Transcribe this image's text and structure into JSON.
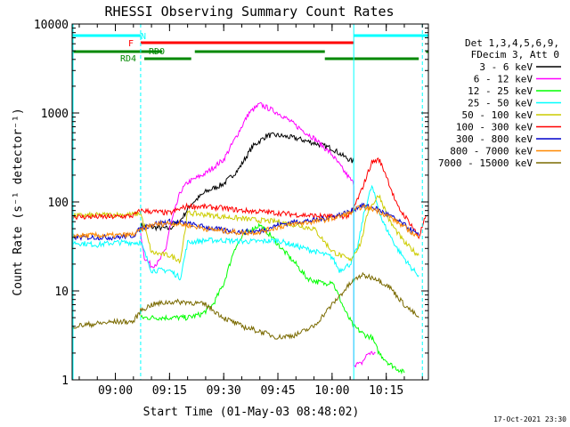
{
  "chart_data": {
    "type": "line",
    "title": "RHESSI Observing Summary Count Rates",
    "xlabel": "Start Time (01-May-03 08:48:02)",
    "ylabel": "Count Rate (s⁻¹ detector⁻¹)",
    "y_scale": "log",
    "ylim": [
      1,
      10000
    ],
    "xlim": [
      "08:48:02",
      "10:26:40"
    ],
    "x_ticks": [
      "09:00",
      "09:15",
      "09:30",
      "09:45",
      "10:00",
      "10:15"
    ],
    "y_ticks": [
      "1",
      "10",
      "100",
      "1000",
      "10000"
    ],
    "legend": {
      "header": [
        "Det 1,3,4,5,6,9,",
        "FDecim 3, Att 0"
      ],
      "placement": "right"
    },
    "series": [
      {
        "name": "3 - 6 keV",
        "color": "#000000",
        "x": [
          "09:07",
          "09:10",
          "09:15",
          "09:18",
          "09:21",
          "09:25",
          "09:30",
          "09:34",
          "09:38",
          "09:42",
          "09:45",
          "09:50",
          "09:55",
          "10:00",
          "10:03",
          "10:06"
        ],
        "y": [
          55,
          52,
          50,
          62,
          95,
          130,
          160,
          230,
          420,
          560,
          560,
          520,
          460,
          400,
          330,
          280
        ]
      },
      {
        "name": "6 - 12 keV",
        "color": "#ff00ff",
        "x": [
          "09:07",
          "09:08",
          "09:10",
          "09:12",
          "09:14",
          "09:15",
          "09:18",
          "09:20",
          "09:25",
          "09:30",
          "09:33",
          "09:37",
          "09:40",
          "09:43",
          "09:46",
          "09:50",
          "09:55",
          "10:00",
          "10:03",
          "10:06",
          "10:06",
          "10:08",
          "10:10",
          "10:12"
        ],
        "y": [
          45,
          24,
          19,
          21,
          30,
          50,
          130,
          165,
          210,
          300,
          500,
          1000,
          1250,
          1100,
          950,
          720,
          520,
          340,
          230,
          160,
          1.5,
          1.5,
          2,
          2
        ]
      },
      {
        "name": "12 - 25 keV",
        "color": "#00ff00",
        "x": [
          "09:07",
          "09:10",
          "09:15",
          "09:20",
          "09:24",
          "09:27",
          "09:30",
          "09:33",
          "09:36",
          "09:40",
          "09:43",
          "09:46",
          "09:50",
          "09:53",
          "09:55",
          "09:58",
          "10:00",
          "10:04",
          "10:06",
          "10:09",
          "10:11",
          "10:13",
          "10:16",
          "10:20"
        ],
        "y": [
          5,
          5,
          5,
          5,
          5.5,
          7,
          12,
          30,
          45,
          55,
          42,
          30,
          20,
          14,
          13,
          12,
          13,
          5.5,
          4,
          3.2,
          3,
          2,
          1.5,
          1.2
        ]
      },
      {
        "name": "25 - 50 keV",
        "color": "#00ffff",
        "x": [
          "08:48:02",
          "08:55",
          "09:00",
          "09:05",
          "09:07",
          "09:10",
          "09:15",
          "09:18",
          "09:20",
          "09:25",
          "09:30",
          "09:35",
          "09:40",
          "09:45",
          "09:50",
          "09:55",
          "10:00",
          "10:02",
          "10:05",
          "10:07",
          "10:09",
          "10:11",
          "10:14",
          "10:18",
          "10:22",
          "10:24"
        ],
        "y": [
          35,
          33,
          35,
          35,
          35,
          17,
          17,
          14,
          35,
          37,
          37,
          36,
          36,
          37,
          32,
          28,
          24,
          17,
          20,
          30,
          80,
          150,
          60,
          30,
          18,
          15
        ]
      },
      {
        "name": "50 - 100 keV",
        "color": "#cccc00",
        "x": [
          "08:48:02",
          "09:00",
          "09:05",
          "09:07",
          "09:10",
          "09:15",
          "09:18",
          "09:20",
          "09:25",
          "09:30",
          "09:35",
          "09:40",
          "09:45",
          "09:50",
          "09:55",
          "10:00",
          "10:05",
          "10:08",
          "10:10",
          "10:13",
          "10:16",
          "10:20",
          "10:24"
        ],
        "y": [
          70,
          72,
          72,
          75,
          27,
          25,
          22,
          75,
          72,
          68,
          65,
          62,
          60,
          55,
          50,
          28,
          22,
          35,
          80,
          120,
          60,
          35,
          25
        ]
      },
      {
        "name": "100 - 300 keV",
        "color": "#ff0000",
        "x": [
          "08:48:02",
          "09:00",
          "09:05",
          "09:07",
          "09:15",
          "09:20",
          "09:25",
          "09:30",
          "09:35",
          "09:40",
          "09:45",
          "09:50",
          "09:55",
          "10:00",
          "10:05",
          "10:08",
          "10:11",
          "10:13",
          "10:15",
          "10:18",
          "10:22",
          "10:24",
          "10:26"
        ],
        "y": [
          68,
          68,
          70,
          80,
          75,
          90,
          88,
          85,
          80,
          78,
          75,
          72,
          70,
          68,
          70,
          130,
          280,
          300,
          200,
          90,
          55,
          40,
          70
        ]
      },
      {
        "name": "300 - 800 keV",
        "color": "#0000cc",
        "x": [
          "08:48:02",
          "09:00",
          "09:05",
          "09:07",
          "09:10",
          "09:15",
          "09:20",
          "09:25",
          "09:30",
          "09:35",
          "09:40",
          "09:45",
          "09:50",
          "09:55",
          "10:00",
          "10:05",
          "10:08",
          "10:12",
          "10:16",
          "10:20",
          "10:24"
        ],
        "y": [
          40,
          40,
          42,
          50,
          56,
          60,
          57,
          52,
          48,
          46,
          47,
          55,
          60,
          62,
          68,
          78,
          92,
          85,
          70,
          55,
          42
        ]
      },
      {
        "name": "800 - 7000 keV",
        "color": "#ff8800",
        "x": [
          "08:48:02",
          "09:00",
          "09:05",
          "09:07",
          "09:10",
          "09:15",
          "09:20",
          "09:25",
          "09:30",
          "09:35",
          "09:40",
          "09:45",
          "09:50",
          "09:55",
          "10:00",
          "10:05",
          "10:08",
          "10:12",
          "10:16",
          "10:20",
          "10:24"
        ],
        "y": [
          42,
          42,
          43,
          48,
          55,
          58,
          55,
          50,
          47,
          45,
          46,
          52,
          57,
          60,
          65,
          75,
          88,
          82,
          68,
          52,
          40
        ]
      },
      {
        "name": "7000 - 15000 keV",
        "color": "#7a6a00",
        "x": [
          "08:48:02",
          "09:00",
          "09:05",
          "09:07",
          "09:10",
          "09:15",
          "09:20",
          "09:25",
          "09:30",
          "09:35",
          "09:40",
          "09:45",
          "09:50",
          "09:55",
          "10:00",
          "10:05",
          "10:08",
          "10:12",
          "10:16",
          "10:20",
          "10:24"
        ],
        "y": [
          4,
          4.5,
          4.5,
          6,
          7,
          7.5,
          7.5,
          7,
          5,
          4,
          3.5,
          3,
          3.2,
          4,
          7,
          12,
          15,
          14,
          11,
          7,
          5
        ]
      }
    ],
    "flags": [
      {
        "label": "N",
        "color": "#00ffff",
        "segments": [
          [
            "08:48:02",
            "09:07"
          ],
          [
            "10:06",
            "10:26:40"
          ]
        ]
      },
      {
        "label": "F",
        "color": "#ff0000",
        "segments": [
          [
            "09:07",
            "10:06"
          ]
        ]
      },
      {
        "label": "RDO",
        "color": "#008800",
        "segments": [
          [
            "09:07",
            "09:13"
          ]
        ]
      },
      {
        "label": "",
        "color": "#008800",
        "segments": [
          [
            "08:48:02",
            "09:07"
          ],
          [
            "09:22",
            "09:58"
          ],
          [
            "10:26",
            "10:26:40"
          ]
        ]
      },
      {
        "label": "RD4",
        "color": "#008800",
        "segments": [
          [
            "09:08",
            "09:21"
          ],
          [
            "09:58",
            "10:24"
          ]
        ]
      }
    ],
    "vlines": [
      {
        "x": "09:07",
        "color": "#00ffff",
        "style": "dashed"
      },
      {
        "x": "10:06",
        "color": "#00ffff",
        "style": "solid"
      },
      {
        "x": "10:25",
        "color": "#00ffff",
        "style": "dashed"
      }
    ]
  },
  "footer": {
    "timestamp": "17-Oct-2021 23:30"
  }
}
